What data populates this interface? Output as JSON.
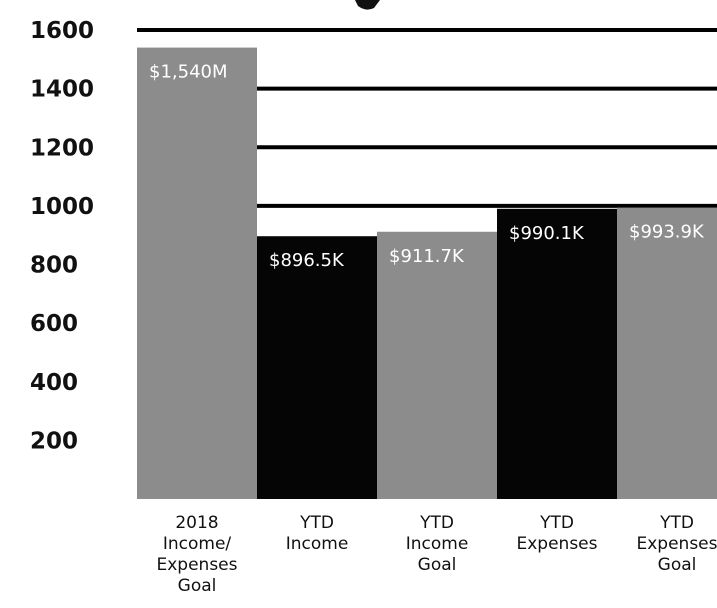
{
  "chart_data": {
    "type": "bar",
    "title": "",
    "xlabel": "",
    "ylabel": "",
    "ylim": [
      0,
      1600
    ],
    "y_ticks": [
      200,
      400,
      600,
      800,
      1000,
      1200,
      1400,
      1600
    ],
    "grid": true,
    "categories": [
      [
        "2018",
        "Income/",
        "Expenses",
        "Goal"
      ],
      [
        "YTD",
        "Income"
      ],
      [
        "YTD",
        "Income",
        "Goal"
      ],
      [
        "YTD",
        "Expenses"
      ],
      [
        "YTD",
        "Expenses",
        "Goal"
      ]
    ],
    "values": [
      1540,
      896.5,
      911.7,
      990.1,
      993.9
    ],
    "value_labels": [
      "$1,540M",
      "$896.5K",
      "$911.7K",
      "$990.1K",
      "$993.9K"
    ],
    "bar_colors": [
      "#8c8c8c",
      "#050505",
      "#8c8c8c",
      "#050505",
      "#8c8c8c"
    ],
    "grid_color": "#000000",
    "text_color": "#111111"
  }
}
